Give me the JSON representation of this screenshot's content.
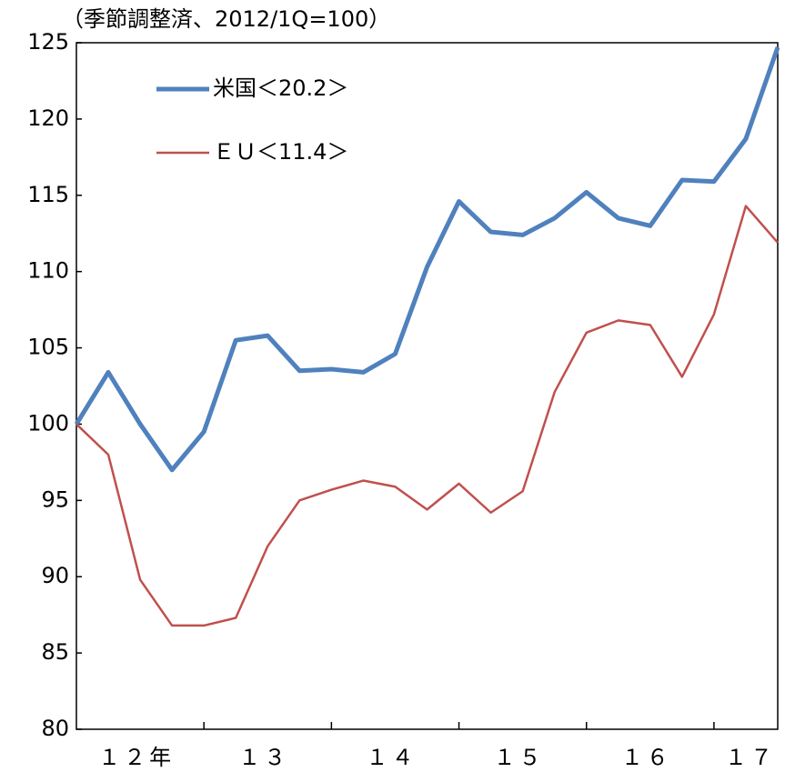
{
  "chart_data": {
    "type": "line",
    "subtitle": "（季節調整済、2012/1Q=100）",
    "categories": [
      null,
      null,
      "１２年",
      null,
      null,
      null,
      "１３",
      null,
      null,
      null,
      "１４",
      null,
      null,
      null,
      "１５",
      null,
      null,
      null,
      "１６",
      null,
      null,
      null,
      "１７"
    ],
    "series": [
      {
        "name": "米国＜20.2＞",
        "color": "#4f81bd",
        "values": [
          100,
          103.4,
          100,
          97,
          99.5,
          105.5,
          105.8,
          103.5,
          103.6,
          103.4,
          104.6,
          110.3,
          114.6,
          112.6,
          112.4,
          113.5,
          115.2,
          113.5,
          113,
          116,
          115.9,
          118.7,
          124.7
        ]
      },
      {
        "name": "ＥＵ＜11.4＞",
        "color": "#c0504d",
        "values": [
          100,
          98,
          89.8,
          86.8,
          86.8,
          87.3,
          92,
          95,
          95.7,
          96.3,
          95.9,
          94.4,
          96.1,
          94.2,
          95.6,
          102.1,
          106,
          106.8,
          106.5,
          103.1,
          107.2,
          114.3,
          111.9
        ]
      }
    ],
    "ylim": [
      80,
      125
    ],
    "yticks": [
      80,
      85,
      90,
      95,
      100,
      105,
      110,
      115,
      120,
      125
    ]
  }
}
